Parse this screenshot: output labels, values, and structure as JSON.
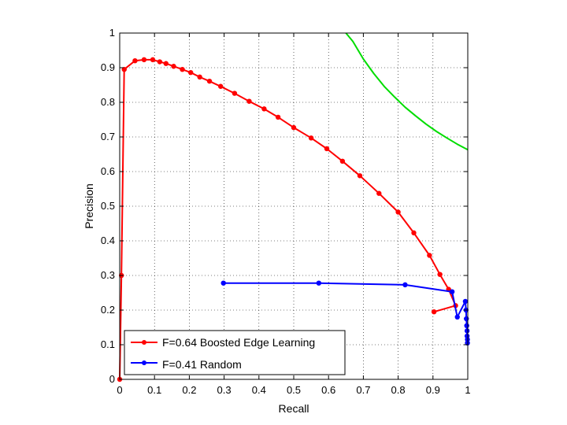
{
  "chart_data": {
    "type": "line",
    "title": "",
    "xlabel": "Recall",
    "ylabel": "Precision",
    "xlim": [
      0,
      1
    ],
    "ylim": [
      0,
      1
    ],
    "xticks": [
      "0",
      "0.1",
      "0.2",
      "0.3",
      "0.4",
      "0.5",
      "0.6",
      "0.7",
      "0.8",
      "0.9",
      "1"
    ],
    "yticks": [
      "0",
      "0.1",
      "0.2",
      "0.3",
      "0.4",
      "0.5",
      "0.6",
      "0.7",
      "0.8",
      "0.9",
      "1"
    ],
    "grid": true,
    "legend_position": "bottom-left",
    "series": [
      {
        "name": "F=0.64 Boosted Edge Learning",
        "color": "#ff0000",
        "marker": "dot",
        "x": [
          0.0,
          0.005,
          0.013,
          0.044,
          0.07,
          0.095,
          0.115,
          0.133,
          0.155,
          0.18,
          0.204,
          0.23,
          0.258,
          0.29,
          0.33,
          0.372,
          0.415,
          0.455,
          0.5,
          0.55,
          0.595,
          0.64,
          0.69,
          0.745,
          0.8,
          0.845,
          0.89,
          0.92,
          0.945,
          0.965,
          0.903
        ],
        "y": [
          0.0,
          0.3,
          0.895,
          0.92,
          0.923,
          0.923,
          0.917,
          0.912,
          0.904,
          0.895,
          0.886,
          0.873,
          0.861,
          0.846,
          0.826,
          0.803,
          0.781,
          0.757,
          0.727,
          0.697,
          0.666,
          0.63,
          0.588,
          0.537,
          0.483,
          0.423,
          0.358,
          0.303,
          0.26,
          0.213,
          0.195
        ]
      },
      {
        "name": "F=0.41 Random",
        "color": "#0000ff",
        "marker": "dot",
        "x": [
          0.298,
          0.572,
          0.82,
          0.955,
          0.97,
          0.993,
          0.995,
          0.996,
          0.997,
          0.998,
          0.998,
          0.999,
          0.999
        ],
        "y": [
          0.278,
          0.278,
          0.273,
          0.253,
          0.18,
          0.225,
          0.2,
          0.175,
          0.155,
          0.14,
          0.125,
          0.115,
          0.105
        ]
      },
      {
        "name": "",
        "color": "#00dd00",
        "marker": "none",
        "x": [
          0.65,
          0.67,
          0.7,
          0.73,
          0.76,
          0.79,
          0.82,
          0.85,
          0.88,
          0.91,
          0.94,
          0.97,
          1.0
        ],
        "y": [
          1.0,
          0.976,
          0.925,
          0.883,
          0.846,
          0.815,
          0.786,
          0.761,
          0.737,
          0.716,
          0.697,
          0.679,
          0.663
        ]
      }
    ]
  }
}
